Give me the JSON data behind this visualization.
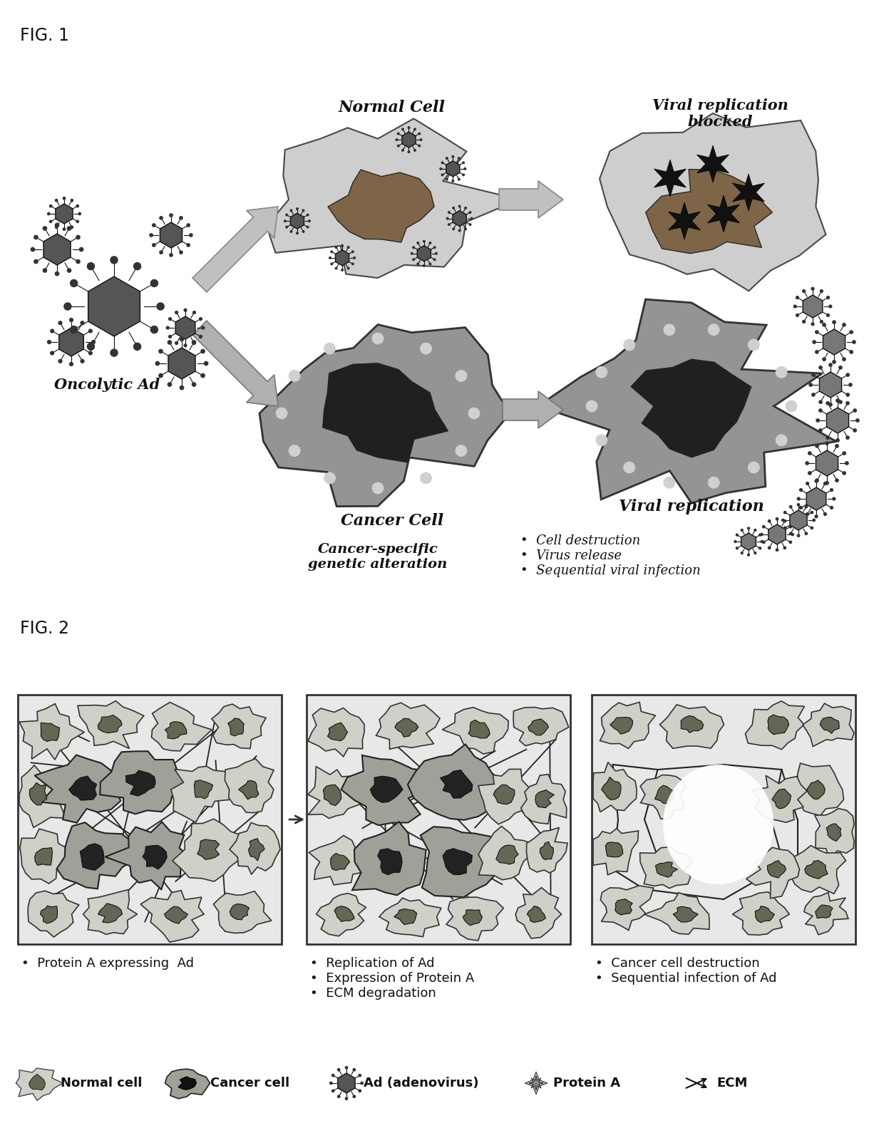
{
  "fig_label_1": "FIG. 1",
  "fig_label_2": "FIG. 2",
  "bg_color": "#ffffff",
  "fig1": {
    "oncolytic_label": "Oncolytic Ad",
    "normal_cell_label": "Normal Cell",
    "cancer_cell_label": "Cancer Cell",
    "viral_blocked_label": "Viral replication\nblocked",
    "viral_rep_label": "Viral replication",
    "genetic_label": "Cancer-specific\ngenetic alteration",
    "bullet_cancer": "•  Cell destruction\n•  Virus release\n•  Sequential viral infection"
  },
  "fig2": {
    "label1": "•  Protein A expressing  Ad",
    "label2": "•  Replication of Ad\n•  Expression of Protein A\n•  ECM degradation",
    "label3": "•  Cancer cell destruction\n•  Sequential infection of Ad",
    "legend_normal": "Normal cell",
    "legend_cancer": "Cancer cell",
    "legend_ad": "Ad (adenovirus)",
    "legend_protein": "Protein A",
    "legend_ecm": "ECM"
  }
}
